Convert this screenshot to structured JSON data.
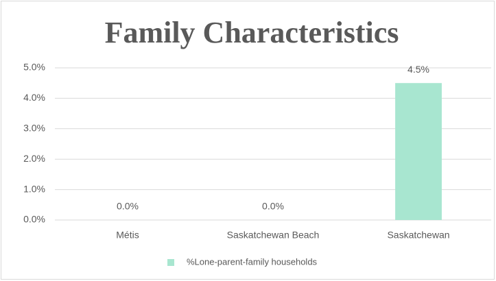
{
  "chart_data": {
    "type": "bar",
    "title": "Family Characteristics",
    "categories": [
      "Métis",
      "Saskatchewan Beach",
      "Saskatchewan"
    ],
    "series": [
      {
        "name": "%Lone-parent-family households",
        "color": "#a8e6d0",
        "values": [
          0,
          0,
          4.5
        ],
        "value_labels": [
          "0.0%",
          "0.0%",
          "4.5%"
        ]
      }
    ],
    "ylim": [
      0,
      5
    ],
    "yticks": [
      {
        "value": 0,
        "label": "0.0%"
      },
      {
        "value": 1,
        "label": "1.0%"
      },
      {
        "value": 2,
        "label": "2.0%"
      },
      {
        "value": 3,
        "label": "3.0%"
      },
      {
        "value": 4,
        "label": "4.0%"
      },
      {
        "value": 5,
        "label": "5.0%"
      }
    ],
    "grid": true,
    "legend": "bottom"
  }
}
